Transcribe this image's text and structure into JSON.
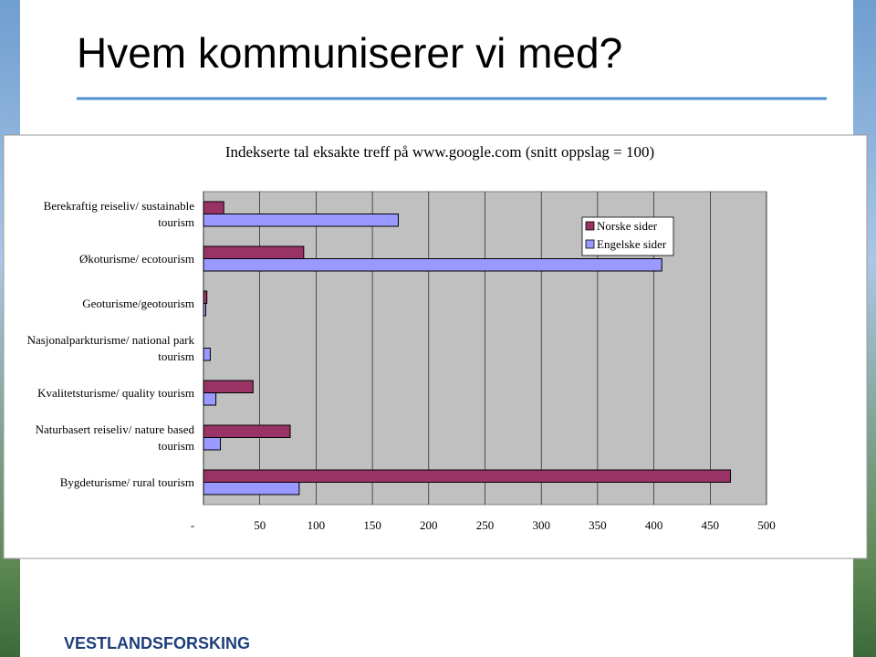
{
  "title": "Hvem kommuniserer vi med?",
  "logo": "VESTLANDSFORSKING",
  "chart_data": {
    "type": "bar",
    "orientation": "horizontal",
    "title": "Indekserte tal eksakte treff på www.google.com (snitt oppslag = 100)",
    "categories": [
      "Berekraftig reiseliv/ sustainable tourism",
      "Økoturisme/ ecotourism",
      "Geoturisme/geotourism",
      "Nasjonalparkturisme/ national park tourism",
      "Kvalitetsturisme/ quality tourism",
      "Naturbasert reiseliv/ nature based tourism",
      "Bygdeturisme/ rural tourism"
    ],
    "series": [
      {
        "name": "Norske sider",
        "color": "#993366",
        "values": [
          18,
          89,
          3,
          0,
          44,
          77,
          468
        ]
      },
      {
        "name": "Engelske sider",
        "color": "#9999ff",
        "values": [
          173,
          407,
          2,
          6,
          11,
          15,
          85
        ]
      }
    ],
    "xlim": [
      0,
      500
    ],
    "xticks": [
      {
        "value": 0,
        "label": "-"
      },
      50,
      100,
      150,
      200,
      250,
      300,
      350,
      400,
      450,
      500
    ],
    "grid": true,
    "legend": "upper right"
  }
}
